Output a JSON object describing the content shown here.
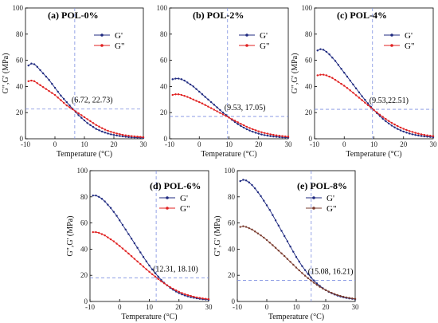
{
  "chart_data": [
    {
      "type": "line",
      "title": "(a) POL-0%",
      "xlabel": "Temperature (°C)",
      "ylabel": "G\",G' (MPa)",
      "xlim": [
        -10,
        30
      ],
      "ylim": [
        0,
        100
      ],
      "xticks": [
        "-10",
        "0",
        "10",
        "20",
        "30"
      ],
      "yticks": [
        "0",
        "20",
        "40",
        "60",
        "80",
        "100"
      ],
      "legend_position": "top-right",
      "crossover": {
        "x": 6.72,
        "y": 22.73,
        "label": "(6.72, 22.73)"
      },
      "series": [
        {
          "name": "G'",
          "color": "#1f2a80",
          "x": [
            -9,
            -8,
            -7,
            -6,
            -5,
            -4,
            -3,
            -2,
            -1,
            0,
            1,
            2,
            3,
            4,
            5,
            6,
            7,
            8,
            9,
            10,
            11,
            12,
            13,
            14,
            15,
            16,
            17,
            18,
            19,
            20,
            21,
            22,
            23,
            24,
            25,
            26,
            27,
            28,
            29,
            30
          ],
          "values": [
            56,
            57.5,
            57,
            55,
            52.5,
            50,
            47.5,
            45,
            42,
            39,
            36,
            33,
            30.5,
            28,
            25.5,
            23,
            20.5,
            18,
            16,
            14,
            12,
            10.5,
            9,
            7.5,
            6.5,
            5.5,
            4.7,
            4,
            3.4,
            2.9,
            2.5,
            2.1,
            1.8,
            1.5,
            1.3,
            1.1,
            1,
            0.9,
            0.8,
            0.7
          ]
        },
        {
          "name": "G\"",
          "color": "#e02020",
          "x": [
            -9,
            -8,
            -7,
            -6,
            -5,
            -4,
            -3,
            -2,
            -1,
            0,
            1,
            2,
            3,
            4,
            5,
            6,
            7,
            8,
            9,
            10,
            11,
            12,
            13,
            14,
            15,
            16,
            17,
            18,
            19,
            20,
            21,
            22,
            23,
            24,
            25,
            26,
            27,
            28,
            29,
            30
          ],
          "values": [
            44,
            44.5,
            44,
            42.5,
            41,
            39.5,
            38,
            36.5,
            35,
            33.5,
            31.5,
            29.5,
            27.5,
            25.5,
            24,
            22.5,
            21,
            19.5,
            18,
            16.5,
            15,
            13.5,
            12,
            10.5,
            9.3,
            8.1,
            7,
            6.1,
            5.3,
            4.6,
            4,
            3.5,
            3,
            2.6,
            2.3,
            2,
            1.8,
            1.6,
            1.4,
            1.2
          ]
        }
      ]
    },
    {
      "type": "line",
      "title": "(b) POL-2%",
      "xlabel": "Temperature (°C)",
      "ylabel": "",
      "xlim": [
        -10,
        30
      ],
      "ylim": [
        0,
        100
      ],
      "xticks": [
        "-10",
        "0",
        "10",
        "20",
        "30"
      ],
      "yticks": [
        "0",
        "20",
        "40",
        "60",
        "80",
        "100"
      ],
      "legend_position": "top-right",
      "crossover": {
        "x": 9.53,
        "y": 17.05,
        "label": "(9.53, 17.05)"
      },
      "series": [
        {
          "name": "G'",
          "color": "#1f2a80",
          "x": [
            -9,
            -8,
            -7,
            -6,
            -5,
            -4,
            -3,
            -2,
            -1,
            0,
            1,
            2,
            3,
            4,
            5,
            6,
            7,
            8,
            9,
            10,
            11,
            12,
            13,
            14,
            15,
            16,
            17,
            18,
            19,
            20,
            21,
            22,
            23,
            24,
            25,
            26,
            27,
            28,
            29,
            30
          ],
          "values": [
            45.5,
            46,
            46,
            45.5,
            44.5,
            43,
            41.5,
            40,
            38,
            36,
            34,
            32,
            30,
            28,
            26,
            24,
            22,
            20,
            18.2,
            16.3,
            14.5,
            12.8,
            11.2,
            9.8,
            8.5,
            7.3,
            6.3,
            5.4,
            4.6,
            3.9,
            3.3,
            2.8,
            2.4,
            2,
            1.7,
            1.5,
            1.3,
            1.1,
            1,
            0.9
          ]
        },
        {
          "name": "G\"",
          "color": "#e02020",
          "x": [
            -9,
            -8,
            -7,
            -6,
            -5,
            -4,
            -3,
            -2,
            -1,
            0,
            1,
            2,
            3,
            4,
            5,
            6,
            7,
            8,
            9,
            10,
            11,
            12,
            13,
            14,
            15,
            16,
            17,
            18,
            19,
            20,
            21,
            22,
            23,
            24,
            25,
            26,
            27,
            28,
            29,
            30
          ],
          "values": [
            33.5,
            34,
            34,
            33.5,
            32.8,
            32,
            31,
            30,
            29,
            28,
            27,
            25.8,
            24.6,
            23.4,
            22.2,
            21,
            19.8,
            18.6,
            17.4,
            16.2,
            15,
            13.8,
            12.6,
            11.4,
            10.3,
            9.2,
            8.2,
            7.3,
            6.5,
            5.7,
            5,
            4.4,
            3.9,
            3.4,
            3,
            2.6,
            2.3,
            2,
            1.8,
            1.6
          ]
        }
      ]
    },
    {
      "type": "line",
      "title": "(c) POL-4%",
      "xlabel": "Temperature (°C)",
      "ylabel": "G\",G' (MPa)",
      "xlim": [
        -10,
        30
      ],
      "ylim": [
        0,
        100
      ],
      "xticks": [
        "-10",
        "0",
        "10",
        "20",
        "30"
      ],
      "yticks": [
        "0",
        "20",
        "40",
        "60",
        "80",
        "100"
      ],
      "legend_position": "top-right",
      "crossover": {
        "x": 9.53,
        "y": 22.51,
        "label": "(9.53,22.51)"
      },
      "series": [
        {
          "name": "G'",
          "color": "#1f2a80",
          "x": [
            -9,
            -8,
            -7,
            -6,
            -5,
            -4,
            -3,
            -2,
            -1,
            0,
            1,
            2,
            3,
            4,
            5,
            6,
            7,
            8,
            9,
            10,
            11,
            12,
            13,
            14,
            15,
            16,
            17,
            18,
            19,
            20,
            21,
            22,
            23,
            24,
            25,
            26,
            27,
            28,
            29,
            30
          ],
          "values": [
            67.5,
            68.5,
            68,
            66.5,
            64.5,
            62,
            59.5,
            56.5,
            53.5,
            50.5,
            47.5,
            44.5,
            41.5,
            38.5,
            35.5,
            32.5,
            29.8,
            27.1,
            24.5,
            22,
            19.6,
            17.4,
            15.3,
            13.4,
            11.7,
            10.1,
            8.7,
            7.5,
            6.4,
            5.5,
            4.7,
            4,
            3.4,
            2.9,
            2.5,
            2.1,
            1.8,
            1.6,
            1.4,
            1.2
          ]
        },
        {
          "name": "G\"",
          "color": "#e02020",
          "x": [
            -9,
            -8,
            -7,
            -6,
            -5,
            -4,
            -3,
            -2,
            -1,
            0,
            1,
            2,
            3,
            4,
            5,
            6,
            7,
            8,
            9,
            10,
            11,
            12,
            13,
            14,
            15,
            16,
            17,
            18,
            19,
            20,
            21,
            22,
            23,
            24,
            25,
            26,
            27,
            28,
            29,
            30
          ],
          "values": [
            48.5,
            49,
            49,
            48.5,
            47.5,
            46.5,
            45,
            43.5,
            42,
            40.5,
            38.8,
            37,
            35.2,
            33.3,
            31.4,
            29.5,
            27.6,
            25.7,
            23.8,
            22,
            20.2,
            18.4,
            16.7,
            15.1,
            13.6,
            12.2,
            10.9,
            9.7,
            8.6,
            7.6,
            6.7,
            5.9,
            5.2,
            4.5,
            3.9,
            3.4,
            3,
            2.6,
            2.3,
            2
          ]
        }
      ]
    },
    {
      "type": "line",
      "title": "(d) POL-6%",
      "xlabel": "Temperature (°C)",
      "ylabel": "G\",G' (MPa)",
      "xlim": [
        -10,
        30
      ],
      "ylim": [
        0,
        100
      ],
      "xticks": [
        "-10",
        "0",
        "10",
        "20",
        "30"
      ],
      "yticks": [
        "0",
        "20",
        "40",
        "60",
        "80",
        "100"
      ],
      "legend_position": "top-right",
      "crossover": {
        "x": 12.31,
        "y": 18.1,
        "label": "(12.31, 18.10)"
      },
      "series": [
        {
          "name": "G'",
          "color": "#1f2a80",
          "x": [
            -9,
            -8,
            -7,
            -6,
            -5,
            -4,
            -3,
            -2,
            -1,
            0,
            1,
            2,
            3,
            4,
            5,
            6,
            7,
            8,
            9,
            10,
            11,
            12,
            13,
            14,
            15,
            16,
            17,
            18,
            19,
            20,
            21,
            22,
            23,
            24,
            25,
            26,
            27,
            28,
            29,
            30
          ],
          "values": [
            81,
            81,
            80,
            78.5,
            76.5,
            74,
            71.5,
            68.5,
            65.5,
            62,
            58.5,
            55,
            51.5,
            48,
            44.5,
            41,
            37.5,
            34,
            30.7,
            27.5,
            24.5,
            21.6,
            19,
            16.5,
            14.3,
            12.3,
            10.5,
            9,
            7.6,
            6.4,
            5.4,
            4.6,
            3.9,
            3.3,
            2.8,
            2.4,
            2,
            1.7,
            1.5,
            1.3
          ]
        },
        {
          "name": "G\"",
          "color": "#e02020",
          "x": [
            -9,
            -8,
            -7,
            -6,
            -5,
            -4,
            -3,
            -2,
            -1,
            0,
            1,
            2,
            3,
            4,
            5,
            6,
            7,
            8,
            9,
            10,
            11,
            12,
            13,
            14,
            15,
            16,
            17,
            18,
            19,
            20,
            21,
            22,
            23,
            24,
            25,
            26,
            27,
            28,
            29,
            30
          ],
          "values": [
            53,
            53,
            52.5,
            51.5,
            50.5,
            49,
            47.5,
            46,
            44.2,
            42.4,
            40.5,
            38.6,
            36.6,
            34.6,
            32.6,
            30.6,
            28.6,
            26.6,
            24.6,
            22.7,
            20.8,
            19,
            17.2,
            15.5,
            13.9,
            12.4,
            11,
            9.7,
            8.5,
            7.4,
            6.4,
            5.6,
            4.8,
            4.2,
            3.6,
            3.1,
            2.7,
            2.3,
            2,
            1.8
          ]
        }
      ]
    },
    {
      "type": "line",
      "title": "(e) POL-8%",
      "xlabel": "Temperature (°C)",
      "ylabel": "G\",G' (MPa)",
      "xlim": [
        -10,
        30
      ],
      "ylim": [
        0,
        100
      ],
      "xticks": [
        "-10",
        "0",
        "10",
        "20",
        "30"
      ],
      "yticks": [
        "0",
        "20",
        "40",
        "60",
        "80",
        "100"
      ],
      "legend_position": "top-right",
      "crossover": {
        "x": 15.08,
        "y": 16.21,
        "label": "(15.08, 16.21)"
      },
      "series": [
        {
          "name": "G'",
          "color": "#1f2a80",
          "x": [
            -9,
            -8,
            -7,
            -6,
            -5,
            -4,
            -3,
            -2,
            -1,
            0,
            1,
            2,
            3,
            4,
            5,
            6,
            7,
            8,
            9,
            10,
            11,
            12,
            13,
            14,
            15,
            16,
            17,
            18,
            19,
            20,
            21,
            22,
            23,
            24,
            25,
            26,
            27,
            28,
            29,
            30
          ],
          "values": [
            92,
            93,
            92.5,
            91,
            89,
            86.5,
            83.5,
            80.5,
            77,
            73.5,
            70,
            66,
            62,
            58,
            54,
            50,
            46,
            42,
            38,
            34,
            30.5,
            27,
            24,
            21,
            18.4,
            16,
            13.8,
            11.9,
            10.2,
            8.7,
            7.4,
            6.3,
            5.3,
            4.5,
            3.8,
            3.2,
            2.7,
            2.3,
            2,
            1.7
          ]
        },
        {
          "name": "G\"",
          "color": "#7a3b2e",
          "x": [
            -9,
            -8,
            -7,
            -6,
            -5,
            -4,
            -3,
            -2,
            -1,
            0,
            1,
            2,
            3,
            4,
            5,
            6,
            7,
            8,
            9,
            10,
            11,
            12,
            13,
            14,
            15,
            16,
            17,
            18,
            19,
            20,
            21,
            22,
            23,
            24,
            25,
            26,
            27,
            28,
            29,
            30
          ],
          "values": [
            57,
            57.5,
            57,
            56,
            55,
            53.5,
            52,
            50.5,
            48.8,
            47,
            45,
            43,
            41,
            38.9,
            36.8,
            34.7,
            32.5,
            30.3,
            28.1,
            25.9,
            23.8,
            21.7,
            19.7,
            17.8,
            16,
            14.3,
            12.7,
            11.2,
            9.9,
            8.7,
            7.6,
            6.6,
            5.7,
            4.9,
            4.2,
            3.6,
            3.1,
            2.7,
            2.3,
            2
          ]
        }
      ]
    }
  ]
}
